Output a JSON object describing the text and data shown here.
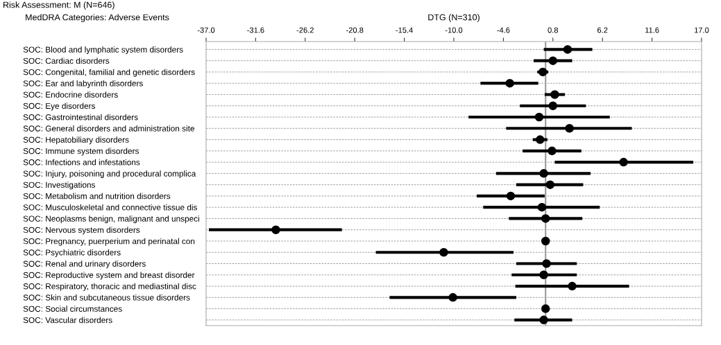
{
  "chart_data": {
    "type": "scatter",
    "title": "DTG (N=310)",
    "ylabel": "MedDRA Categories: Adverse Events",
    "annotations": [
      "Risk Assessment: M (N=646)"
    ],
    "categories": [
      "SOC: Blood and lymphatic system disorders",
      "SOC: Cardiac disorders",
      "SOC: Congenital, familial and genetic disorders",
      "SOC: Ear and labyrinth disorders",
      "SOC: Endocrine disorders",
      "SOC: Eye disorders",
      "SOC: Gastrointestinal disorders",
      "SOC: General disorders and administration site",
      "SOC: Hepatobiliary disorders",
      "SOC: Immune system disorders",
      "SOC: Infections and infestations",
      "SOC: Injury, poisoning and procedural complica",
      "SOC: Investigations",
      "SOC: Metabolism and nutrition disorders",
      "SOC: Musculoskeletal and connective tissue dis",
      "SOC: Neoplasms benign, malignant and unspeci",
      "SOC: Nervous system disorders",
      "SOC: Pregnancy, puerperium and perinatal con",
      "SOC: Psychiatric disorders",
      "SOC: Renal and urinary disorders",
      "SOC: Reproductive system and breast disorder",
      "SOC: Respiratory, thoracic and mediastinal disc",
      "SOC: Skin and subcutaneous tissue disorders",
      "SOC: Social circumstances",
      "SOC: Vascular disorders"
    ],
    "orientation": "horizontal",
    "values": [
      2.4,
      0.8,
      -0.3,
      -3.9,
      1.0,
      0.8,
      -0.7,
      2.6,
      -0.6,
      0.7,
      8.5,
      -0.2,
      0.5,
      -3.8,
      -0.4,
      0.0,
      -29.4,
      0.0,
      -11.1,
      0.1,
      -0.2,
      2.9,
      -10.1,
      0.0,
      -0.2
    ],
    "errors": [
      [
        -0.2,
        5.1
      ],
      [
        -1.3,
        2.9
      ],
      [
        -0.9,
        0.3
      ],
      [
        -7.1,
        -0.8
      ],
      [
        -0.1,
        2.1
      ],
      [
        -2.8,
        4.4
      ],
      [
        -8.4,
        7.0
      ],
      [
        -4.3,
        9.4
      ],
      [
        -1.4,
        0.2
      ],
      [
        -2.5,
        3.9
      ],
      [
        1.0,
        16.1
      ],
      [
        -5.4,
        4.9
      ],
      [
        -3.2,
        4.1
      ],
      [
        -7.5,
        -0.1
      ],
      [
        -6.8,
        5.9
      ],
      [
        -4.0,
        4.0
      ],
      [
        -36.7,
        -22.2
      ],
      null,
      [
        -18.5,
        -3.5
      ],
      [
        -3.2,
        3.4
      ],
      [
        -3.7,
        3.4
      ],
      [
        -3.3,
        9.1
      ],
      [
        -17.0,
        -3.2
      ],
      null,
      [
        -3.4,
        2.9
      ]
    ],
    "color": "#000000",
    "marker": "circle",
    "xlim": [
      -37.0,
      17.0
    ],
    "xticks": [
      {
        "value": -37.0,
        "label": "-37.0"
      },
      {
        "value": -31.6,
        "label": "-31.6"
      },
      {
        "value": -26.2,
        "label": "-26.2"
      },
      {
        "value": -20.8,
        "label": "-20.8"
      },
      {
        "value": -15.4,
        "label": "-15.4"
      },
      {
        "value": -10.0,
        "label": "-10.0"
      },
      {
        "value": -4.6,
        "label": "-4.6"
      },
      {
        "value": 0.8,
        "label": "0.8"
      },
      {
        "value": 6.2,
        "label": "6.2"
      },
      {
        "value": 11.6,
        "label": "11.6"
      },
      {
        "value": 17.0,
        "label": "17.0"
      }
    ],
    "ref_lines": [
      {
        "axis": "x",
        "value": 0,
        "color": "#999999"
      }
    ],
    "grid": "y"
  }
}
